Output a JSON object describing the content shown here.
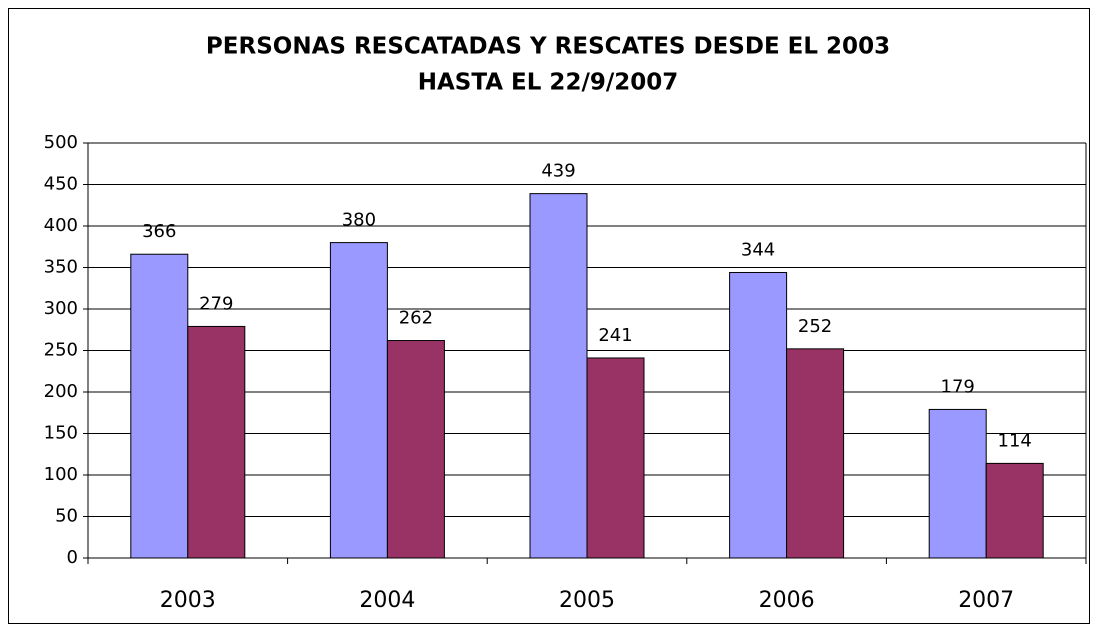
{
  "chart_data": {
    "type": "bar",
    "title": [
      "PERSONAS RESCATADAS Y RESCATES DESDE EL 2003",
      "HASTA EL 22/9/2007"
    ],
    "categories": [
      "2003",
      "2004",
      "2005",
      "2006",
      "2007"
    ],
    "series": [
      {
        "color": "#9999ff",
        "values": [
          366,
          380,
          439,
          344,
          179
        ]
      },
      {
        "color": "#993366",
        "values": [
          279,
          262,
          241,
          252,
          114
        ]
      }
    ],
    "ylim": [
      0,
      500
    ],
    "yticks": [
      0,
      50,
      100,
      150,
      200,
      250,
      300,
      350,
      400,
      450,
      500
    ],
    "grid": true
  }
}
